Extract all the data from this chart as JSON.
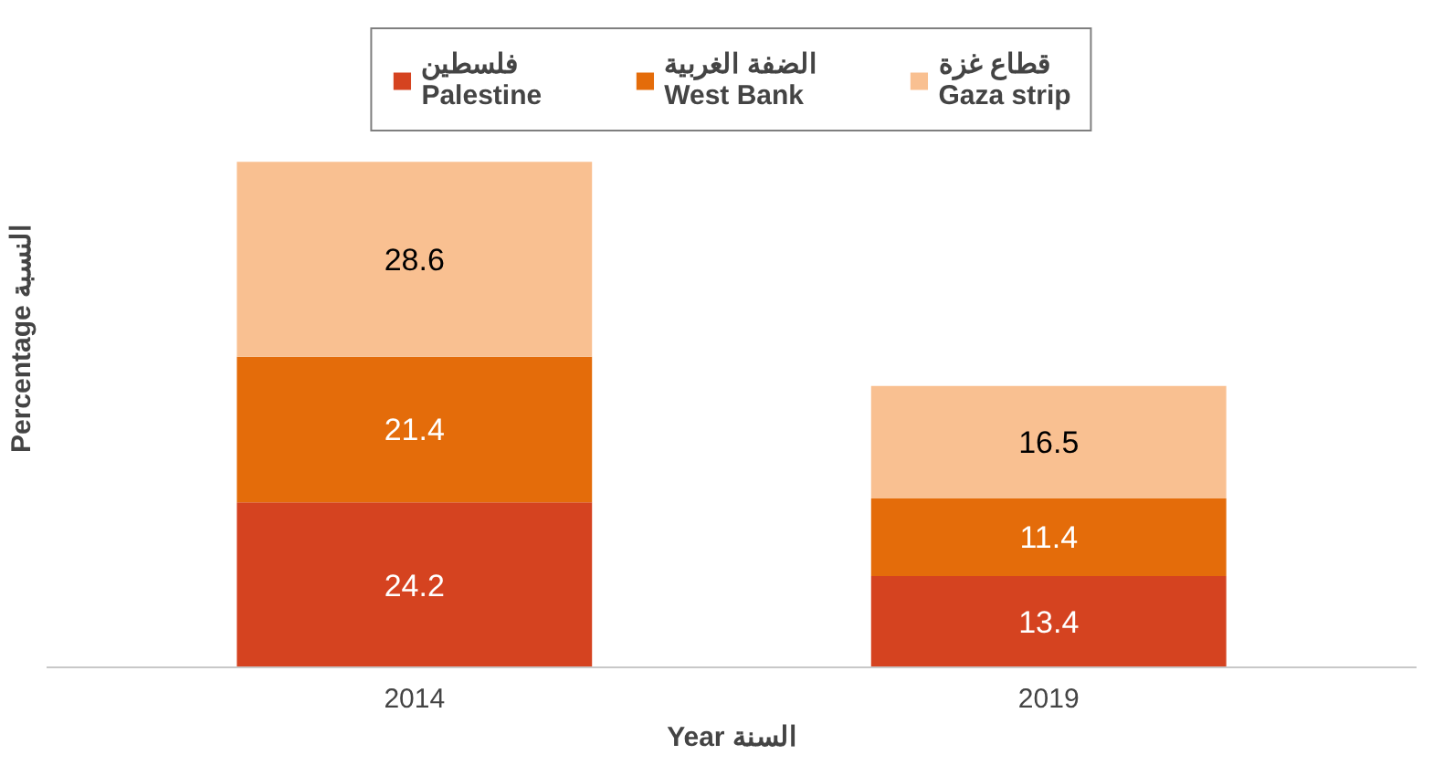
{
  "chart_data": {
    "type": "bar",
    "stacked": true,
    "data_labels": true,
    "legend": "top",
    "grid": false,
    "xlabel": "Year السنة",
    "ylabel": "Percentage النسبة",
    "categories": [
      "2014",
      "2019"
    ],
    "series": [
      {
        "name": "فلسطين\nPalestine",
        "color": "#d54320",
        "values": [
          24.2,
          13.4
        ]
      },
      {
        "name": "الضفة الغربية\nWest Bank",
        "color": "#e46c0a",
        "values": [
          21.4,
          11.4
        ]
      },
      {
        "name": "قطاع غزة\nGaza strip",
        "color": "#f9c091",
        "values": [
          28.6,
          16.5
        ]
      }
    ]
  }
}
